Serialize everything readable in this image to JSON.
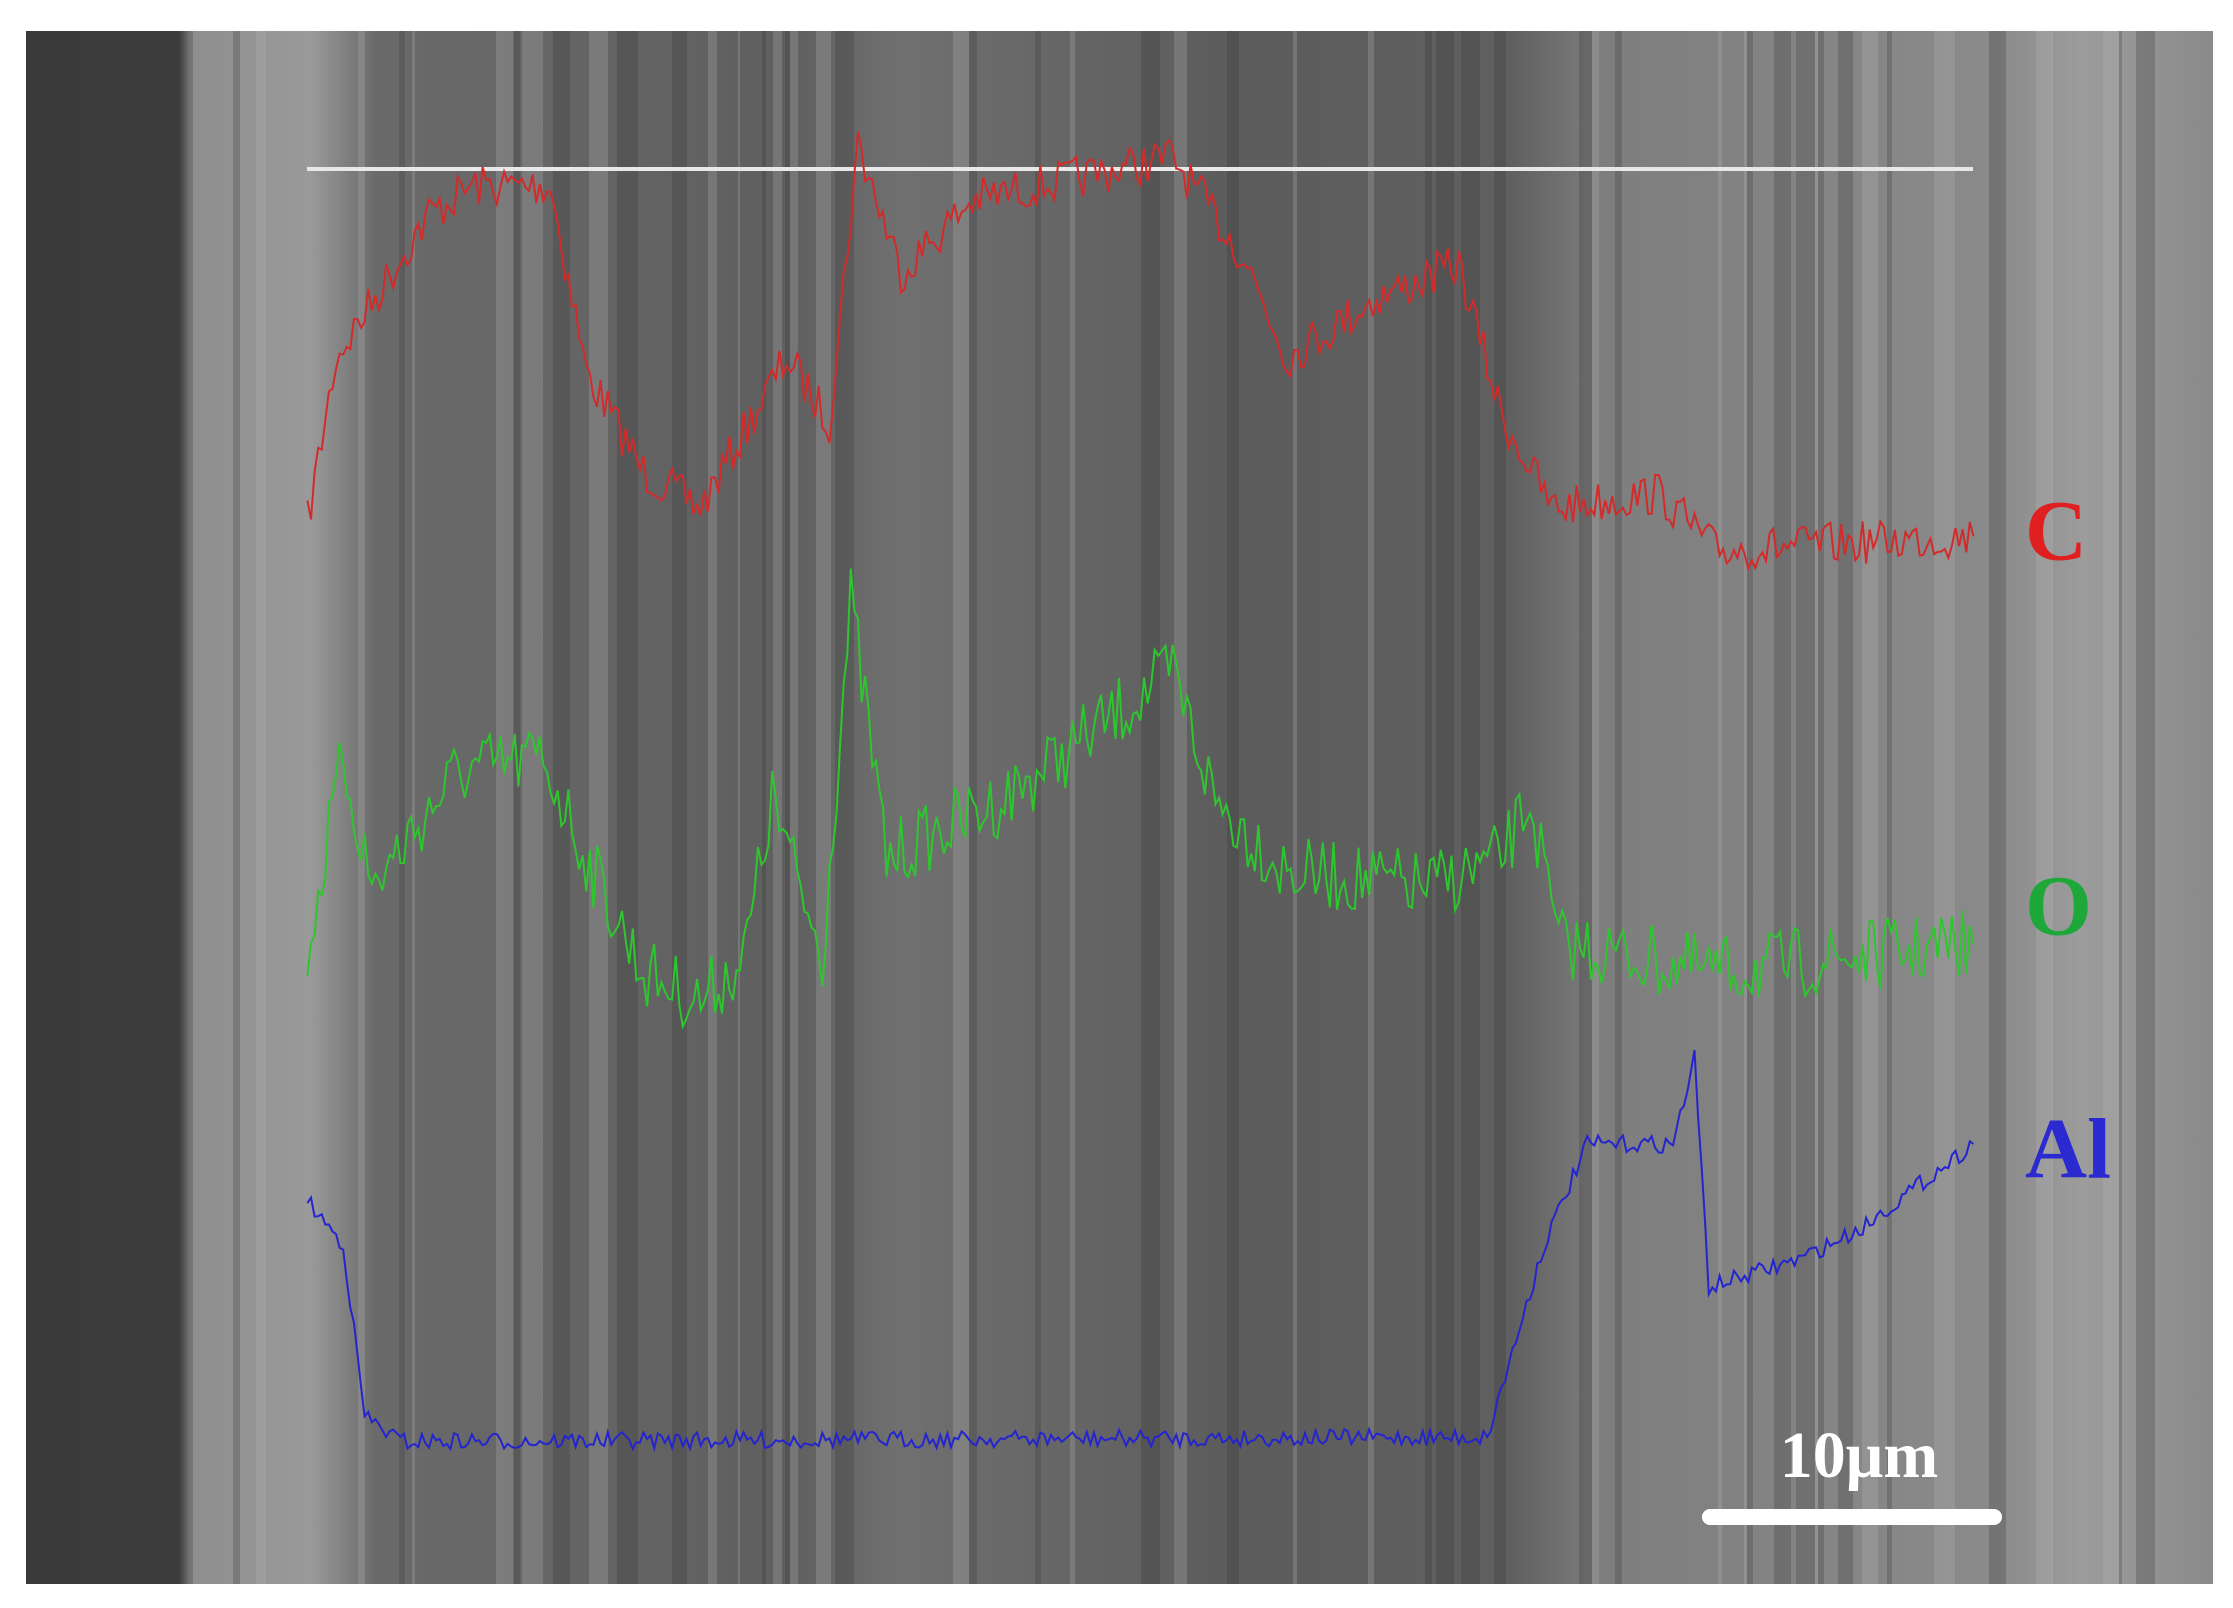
{
  "element_labels": {
    "carbon": "C",
    "oxygen": "O",
    "aluminum": "Al"
  },
  "scale_bar": "10μm"
}
